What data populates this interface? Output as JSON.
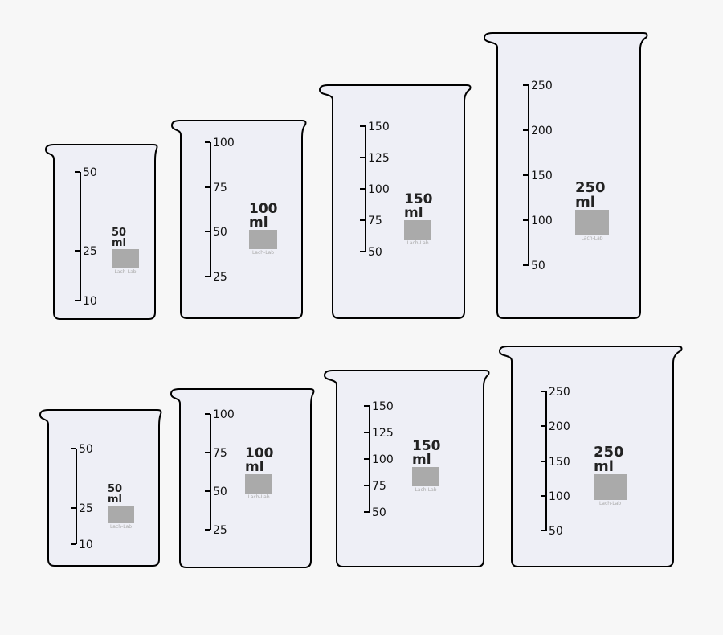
{
  "colors": {
    "background": "#f7f7f7",
    "glass": "#eeeff6",
    "outline": "#000000",
    "label_box": "#aaaaaa"
  },
  "beakers": [
    {
      "capacity": "50",
      "unit": "ml",
      "brand": "Lach-Lab",
      "scale": [
        "50",
        "25",
        "10"
      ]
    },
    {
      "capacity": "100",
      "unit": "ml",
      "brand": "Lach-Lab",
      "scale": [
        "100",
        "75",
        "50",
        "25"
      ]
    },
    {
      "capacity": "150",
      "unit": "ml",
      "brand": "Lach-Lab",
      "scale": [
        "150",
        "125",
        "100",
        "75",
        "50"
      ]
    },
    {
      "capacity": "250",
      "unit": "ml",
      "brand": "Lach-Lab",
      "scale": [
        "250",
        "200",
        "150",
        "100",
        "50"
      ]
    },
    {
      "capacity": "50",
      "unit": "ml",
      "brand": "Lach-Lab",
      "scale": [
        "50",
        "25",
        "10"
      ]
    },
    {
      "capacity": "100",
      "unit": "ml",
      "brand": "Lach-Lab",
      "scale": [
        "100",
        "75",
        "50",
        "25"
      ]
    },
    {
      "capacity": "150",
      "unit": "ml",
      "brand": "Lach-Lab",
      "scale": [
        "150",
        "125",
        "100",
        "75",
        "50"
      ]
    },
    {
      "capacity": "250",
      "unit": "ml",
      "brand": "Lach-Lab",
      "scale": [
        "250",
        "200",
        "150",
        "100",
        "50"
      ]
    }
  ]
}
